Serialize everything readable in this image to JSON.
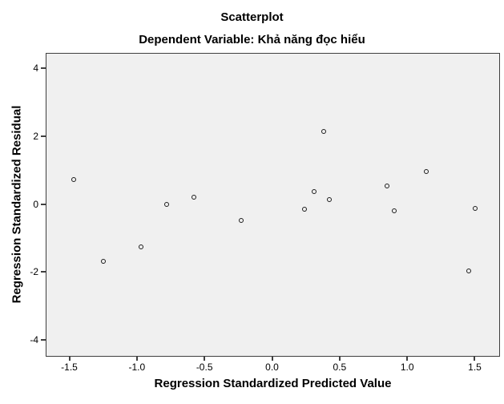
{
  "chart_data": {
    "type": "scatter",
    "title": "Scatterplot",
    "subtitle": "Dependent Variable: Khả năng đọc hiểu",
    "xlabel": "Regression Standardized Predicted Value",
    "ylabel": "Regression Standardized Residual",
    "xlim": [
      -1.675,
      1.675
    ],
    "ylim": [
      -4.45,
      4.45
    ],
    "x_ticks": [
      {
        "value": -1.5,
        "label": "-1.5"
      },
      {
        "value": -1.0,
        "label": "-1.0"
      },
      {
        "value": -0.5,
        "label": "-0.5"
      },
      {
        "value": 0.0,
        "label": "0.0"
      },
      {
        "value": 0.5,
        "label": "0.5"
      },
      {
        "value": 1.0,
        "label": "1.0"
      },
      {
        "value": 1.5,
        "label": "1.5"
      }
    ],
    "y_ticks": [
      {
        "value": 4,
        "label": "4"
      },
      {
        "value": 2,
        "label": "2"
      },
      {
        "value": 0,
        "label": "0"
      },
      {
        "value": -2,
        "label": "-2"
      },
      {
        "value": -4,
        "label": "-4"
      }
    ],
    "points": [
      {
        "x": -1.47,
        "y": 0.74
      },
      {
        "x": -1.25,
        "y": -1.68
      },
      {
        "x": -0.97,
        "y": -1.26
      },
      {
        "x": -0.78,
        "y": 0.0
      },
      {
        "x": -0.58,
        "y": 0.21
      },
      {
        "x": -0.23,
        "y": -0.47
      },
      {
        "x": 0.24,
        "y": -0.15
      },
      {
        "x": 0.31,
        "y": 0.38
      },
      {
        "x": 0.38,
        "y": 2.15
      },
      {
        "x": 0.42,
        "y": 0.15
      },
      {
        "x": 0.85,
        "y": 0.55
      },
      {
        "x": 0.9,
        "y": -0.19
      },
      {
        "x": 1.14,
        "y": 0.96
      },
      {
        "x": 1.45,
        "y": -1.97
      },
      {
        "x": 1.5,
        "y": -0.12
      }
    ],
    "marker": "open-circle",
    "grid": false,
    "legend": "none",
    "plot_background": "#f0f0f0",
    "border_color": "#3f3f3f",
    "marker_color": "#1c1c1c",
    "text_color": "#000000"
  }
}
